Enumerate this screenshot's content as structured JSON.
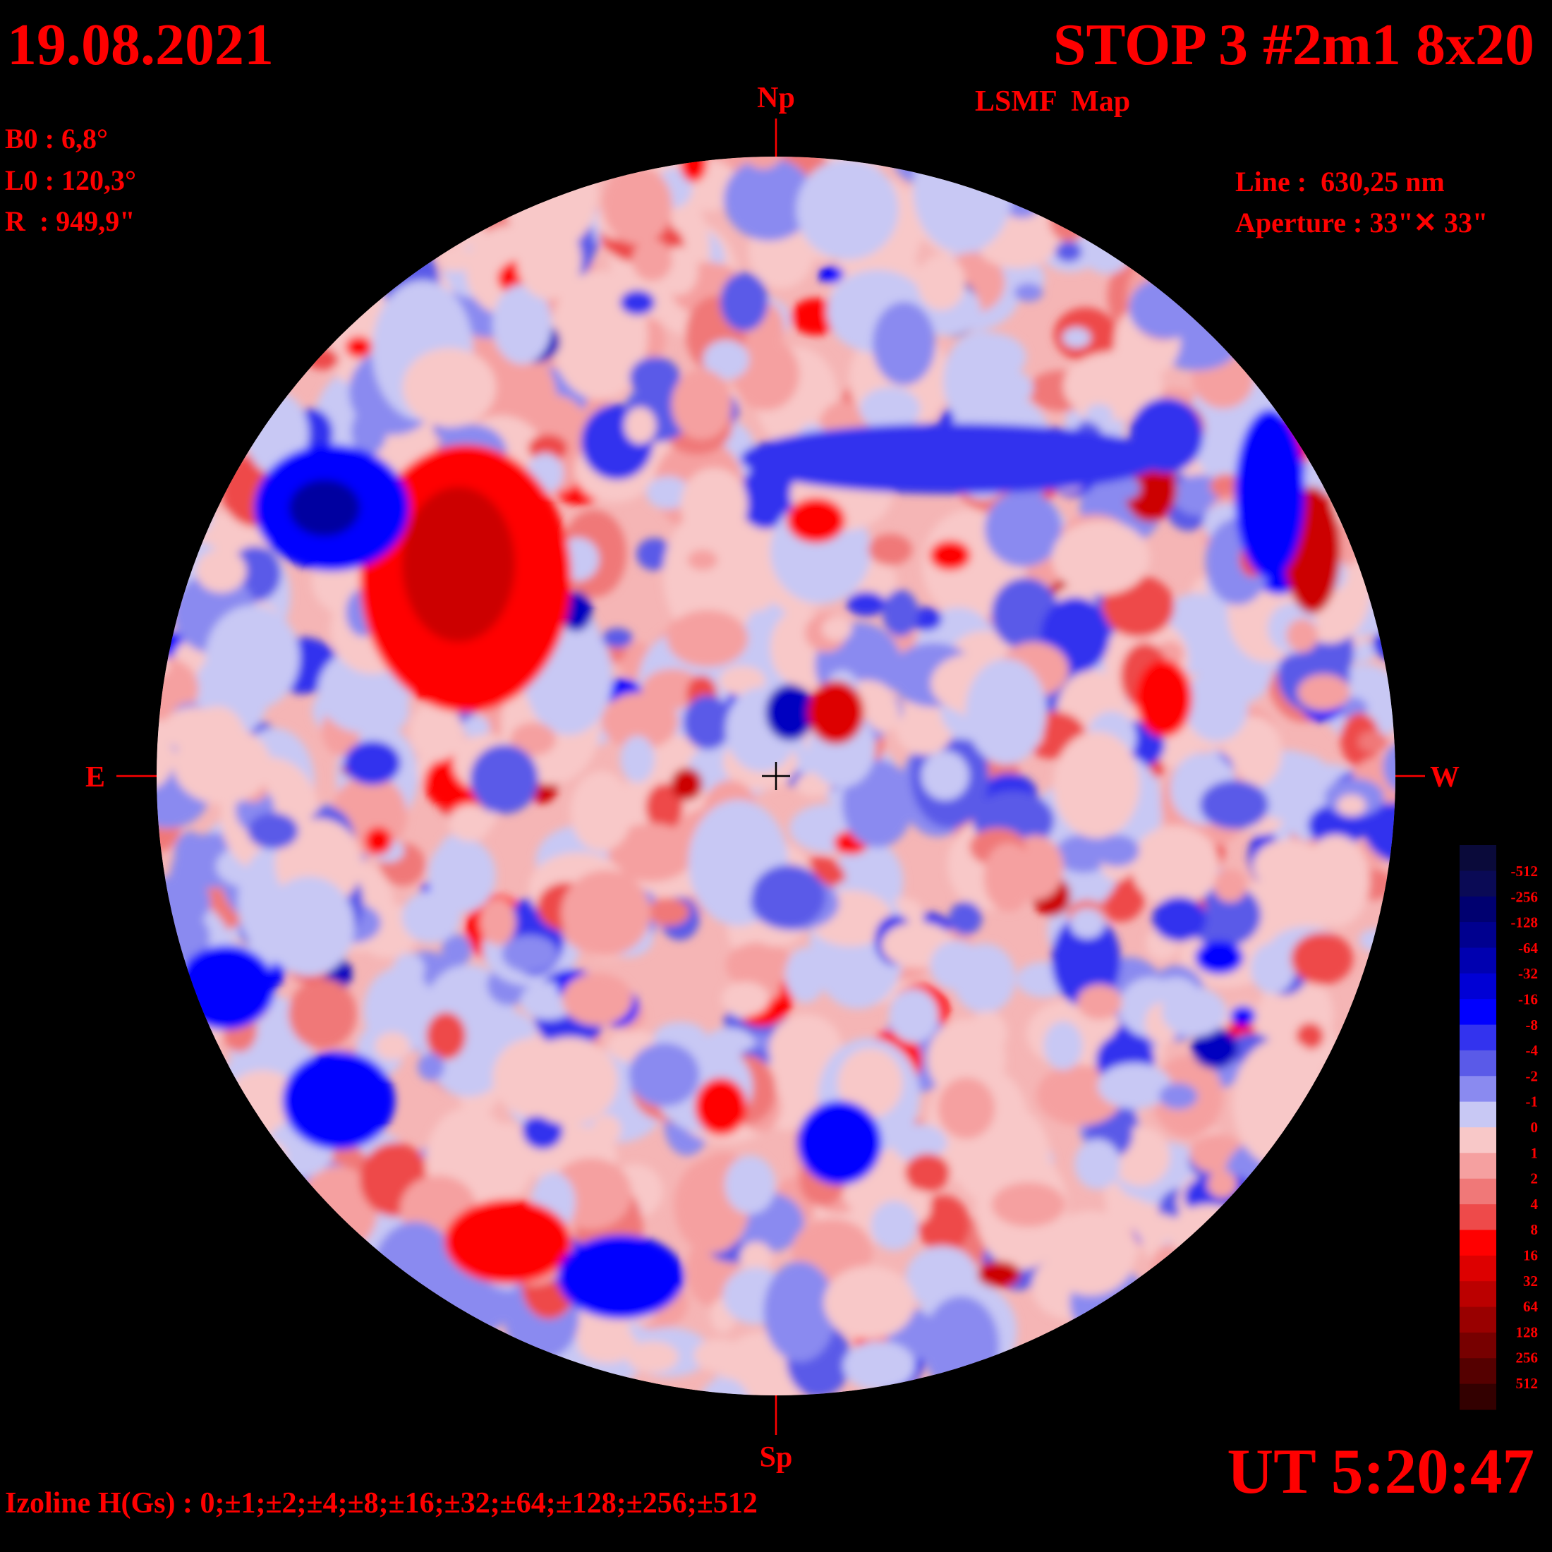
{
  "header": {
    "date": "19.08.2021",
    "title": "STOP 3 #2m1 8x20",
    "subtitle": "LSMF  Map"
  },
  "parameters": [
    "B0 : 6,8°",
    "L0 : 120,3°",
    "R  : 949,9\""
  ],
  "instrument": [
    "Line :  630,25 nm",
    "Aperture : 33\"✕ 33\""
  ],
  "directions": {
    "north": "Np",
    "south": "Sp",
    "east": "E",
    "west": "W"
  },
  "colorbar": {
    "labels": [
      "-512",
      "-256",
      "-128",
      "-64",
      "-32",
      "-16",
      "-8",
      "-4",
      "-2",
      "-1",
      "0",
      "1",
      "2",
      "4",
      "8",
      "16",
      "32",
      "64",
      "128",
      "256",
      "512"
    ]
  },
  "footer": {
    "izolines": "Izoline H(Gs) : 0;±1;±2;±4;±8;±16;±32;±64;±128;±256;±512",
    "time": "UT 5:20:47"
  }
}
